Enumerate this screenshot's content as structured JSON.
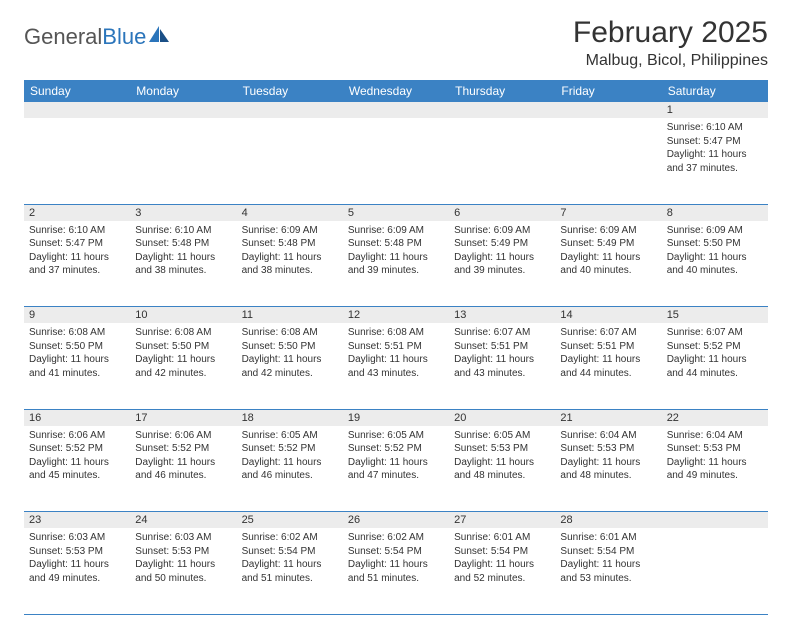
{
  "logo": {
    "text1": "General",
    "text2": "Blue"
  },
  "title": "February 2025",
  "location": "Malbug, Bicol, Philippines",
  "header_bg": "#3b82c4",
  "daynum_bg": "#ececec",
  "border_color": "#3b82c4",
  "day_headers": [
    "Sunday",
    "Monday",
    "Tuesday",
    "Wednesday",
    "Thursday",
    "Friday",
    "Saturday"
  ],
  "weeks": [
    {
      "nums": [
        "",
        "",
        "",
        "",
        "",
        "",
        "1"
      ],
      "cells": [
        null,
        null,
        null,
        null,
        null,
        null,
        {
          "sunrise": "Sunrise: 6:10 AM",
          "sunset": "Sunset: 5:47 PM",
          "day1": "Daylight: 11 hours",
          "day2": "and 37 minutes."
        }
      ]
    },
    {
      "nums": [
        "2",
        "3",
        "4",
        "5",
        "6",
        "7",
        "8"
      ],
      "cells": [
        {
          "sunrise": "Sunrise: 6:10 AM",
          "sunset": "Sunset: 5:47 PM",
          "day1": "Daylight: 11 hours",
          "day2": "and 37 minutes."
        },
        {
          "sunrise": "Sunrise: 6:10 AM",
          "sunset": "Sunset: 5:48 PM",
          "day1": "Daylight: 11 hours",
          "day2": "and 38 minutes."
        },
        {
          "sunrise": "Sunrise: 6:09 AM",
          "sunset": "Sunset: 5:48 PM",
          "day1": "Daylight: 11 hours",
          "day2": "and 38 minutes."
        },
        {
          "sunrise": "Sunrise: 6:09 AM",
          "sunset": "Sunset: 5:48 PM",
          "day1": "Daylight: 11 hours",
          "day2": "and 39 minutes."
        },
        {
          "sunrise": "Sunrise: 6:09 AM",
          "sunset": "Sunset: 5:49 PM",
          "day1": "Daylight: 11 hours",
          "day2": "and 39 minutes."
        },
        {
          "sunrise": "Sunrise: 6:09 AM",
          "sunset": "Sunset: 5:49 PM",
          "day1": "Daylight: 11 hours",
          "day2": "and 40 minutes."
        },
        {
          "sunrise": "Sunrise: 6:09 AM",
          "sunset": "Sunset: 5:50 PM",
          "day1": "Daylight: 11 hours",
          "day2": "and 40 minutes."
        }
      ]
    },
    {
      "nums": [
        "9",
        "10",
        "11",
        "12",
        "13",
        "14",
        "15"
      ],
      "cells": [
        {
          "sunrise": "Sunrise: 6:08 AM",
          "sunset": "Sunset: 5:50 PM",
          "day1": "Daylight: 11 hours",
          "day2": "and 41 minutes."
        },
        {
          "sunrise": "Sunrise: 6:08 AM",
          "sunset": "Sunset: 5:50 PM",
          "day1": "Daylight: 11 hours",
          "day2": "and 42 minutes."
        },
        {
          "sunrise": "Sunrise: 6:08 AM",
          "sunset": "Sunset: 5:50 PM",
          "day1": "Daylight: 11 hours",
          "day2": "and 42 minutes."
        },
        {
          "sunrise": "Sunrise: 6:08 AM",
          "sunset": "Sunset: 5:51 PM",
          "day1": "Daylight: 11 hours",
          "day2": "and 43 minutes."
        },
        {
          "sunrise": "Sunrise: 6:07 AM",
          "sunset": "Sunset: 5:51 PM",
          "day1": "Daylight: 11 hours",
          "day2": "and 43 minutes."
        },
        {
          "sunrise": "Sunrise: 6:07 AM",
          "sunset": "Sunset: 5:51 PM",
          "day1": "Daylight: 11 hours",
          "day2": "and 44 minutes."
        },
        {
          "sunrise": "Sunrise: 6:07 AM",
          "sunset": "Sunset: 5:52 PM",
          "day1": "Daylight: 11 hours",
          "day2": "and 44 minutes."
        }
      ]
    },
    {
      "nums": [
        "16",
        "17",
        "18",
        "19",
        "20",
        "21",
        "22"
      ],
      "cells": [
        {
          "sunrise": "Sunrise: 6:06 AM",
          "sunset": "Sunset: 5:52 PM",
          "day1": "Daylight: 11 hours",
          "day2": "and 45 minutes."
        },
        {
          "sunrise": "Sunrise: 6:06 AM",
          "sunset": "Sunset: 5:52 PM",
          "day1": "Daylight: 11 hours",
          "day2": "and 46 minutes."
        },
        {
          "sunrise": "Sunrise: 6:05 AM",
          "sunset": "Sunset: 5:52 PM",
          "day1": "Daylight: 11 hours",
          "day2": "and 46 minutes."
        },
        {
          "sunrise": "Sunrise: 6:05 AM",
          "sunset": "Sunset: 5:52 PM",
          "day1": "Daylight: 11 hours",
          "day2": "and 47 minutes."
        },
        {
          "sunrise": "Sunrise: 6:05 AM",
          "sunset": "Sunset: 5:53 PM",
          "day1": "Daylight: 11 hours",
          "day2": "and 48 minutes."
        },
        {
          "sunrise": "Sunrise: 6:04 AM",
          "sunset": "Sunset: 5:53 PM",
          "day1": "Daylight: 11 hours",
          "day2": "and 48 minutes."
        },
        {
          "sunrise": "Sunrise: 6:04 AM",
          "sunset": "Sunset: 5:53 PM",
          "day1": "Daylight: 11 hours",
          "day2": "and 49 minutes."
        }
      ]
    },
    {
      "nums": [
        "23",
        "24",
        "25",
        "26",
        "27",
        "28",
        ""
      ],
      "cells": [
        {
          "sunrise": "Sunrise: 6:03 AM",
          "sunset": "Sunset: 5:53 PM",
          "day1": "Daylight: 11 hours",
          "day2": "and 49 minutes."
        },
        {
          "sunrise": "Sunrise: 6:03 AM",
          "sunset": "Sunset: 5:53 PM",
          "day1": "Daylight: 11 hours",
          "day2": "and 50 minutes."
        },
        {
          "sunrise": "Sunrise: 6:02 AM",
          "sunset": "Sunset: 5:54 PM",
          "day1": "Daylight: 11 hours",
          "day2": "and 51 minutes."
        },
        {
          "sunrise": "Sunrise: 6:02 AM",
          "sunset": "Sunset: 5:54 PM",
          "day1": "Daylight: 11 hours",
          "day2": "and 51 minutes."
        },
        {
          "sunrise": "Sunrise: 6:01 AM",
          "sunset": "Sunset: 5:54 PM",
          "day1": "Daylight: 11 hours",
          "day2": "and 52 minutes."
        },
        {
          "sunrise": "Sunrise: 6:01 AM",
          "sunset": "Sunset: 5:54 PM",
          "day1": "Daylight: 11 hours",
          "day2": "and 53 minutes."
        },
        null
      ]
    }
  ]
}
